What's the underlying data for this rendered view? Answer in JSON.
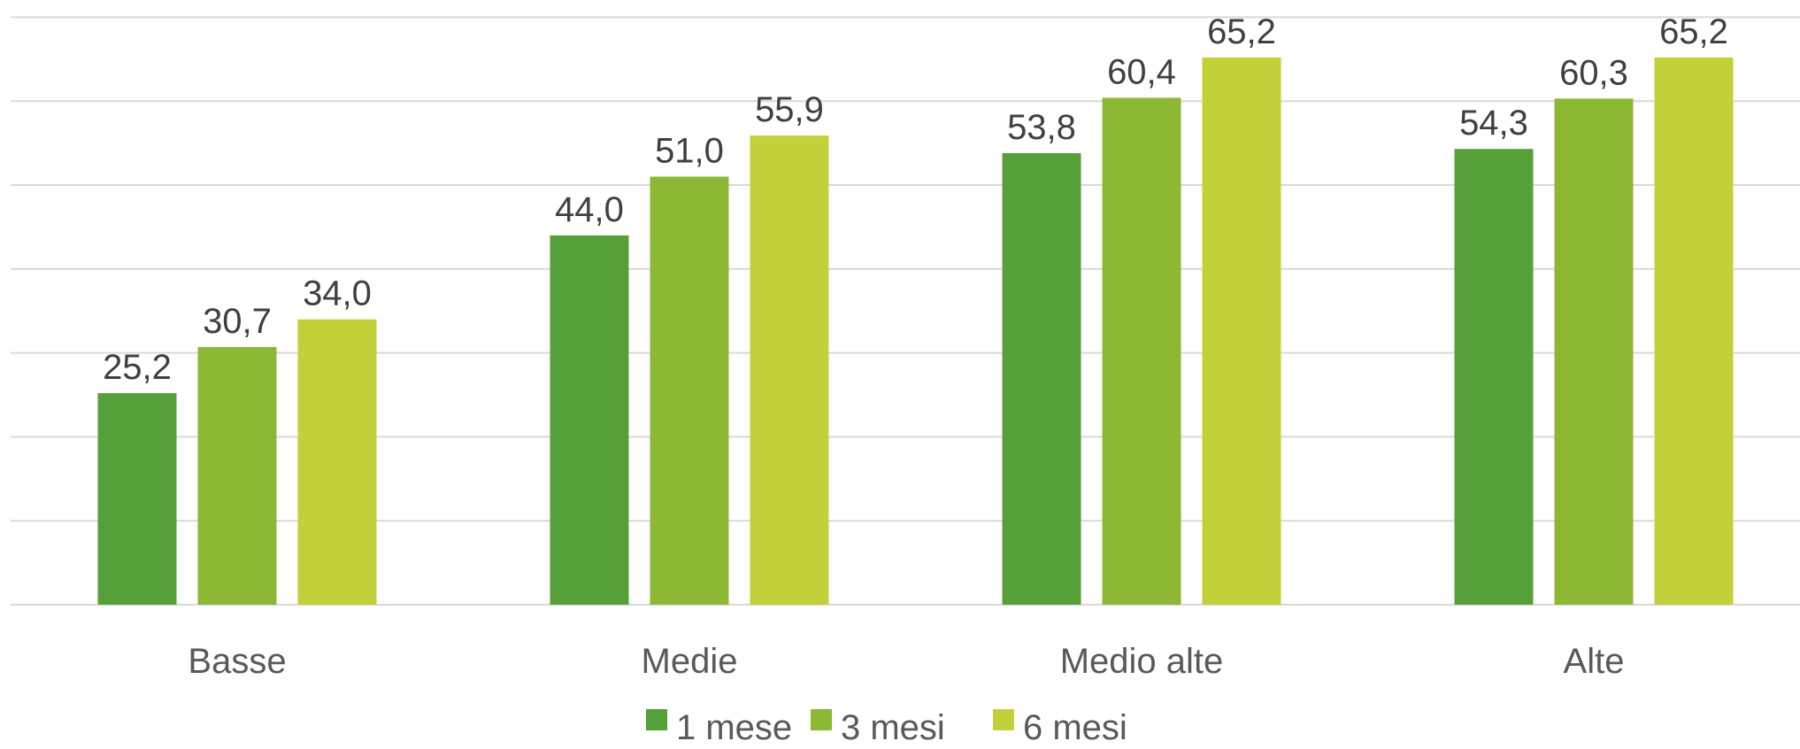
{
  "chart_data": {
    "type": "bar",
    "categories": [
      "Basse",
      "Medie",
      "Medio alte",
      "Alte"
    ],
    "series": [
      {
        "name": "1 mese",
        "values": [
          25.2,
          44.0,
          53.8,
          54.3
        ],
        "labels": [
          "25,2",
          "44,0",
          "53,8",
          "54,3"
        ],
        "color": "#55a038"
      },
      {
        "name": "3 mesi",
        "values": [
          30.7,
          51.0,
          60.4,
          60.3
        ],
        "labels": [
          "30,7",
          "51,0",
          "60,4",
          "60,3"
        ],
        "color": "#8cb833"
      },
      {
        "name": "6 mesi",
        "values": [
          34.0,
          55.9,
          65.2,
          65.2
        ],
        "labels": [
          "34,0",
          "55,9",
          "65,2",
          "65,2"
        ],
        "color": "#c2d13a"
      }
    ],
    "ylim": [
      0,
      70
    ],
    "grid_step": 10,
    "grid": true,
    "legend_position": "bottom"
  }
}
